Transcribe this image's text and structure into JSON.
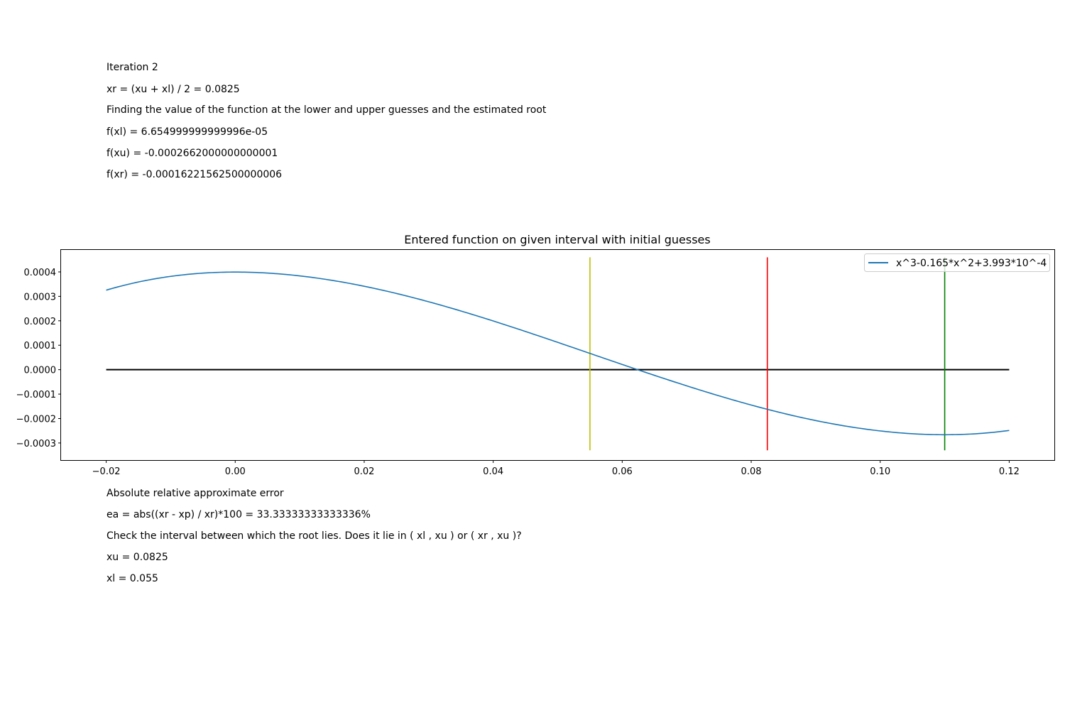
{
  "header": {
    "iteration": "Iteration 2",
    "xr_formula": "xr = (xu + xl) / 2 = 0.0825",
    "finding_text": "Finding the value of the function at the lower and upper guesses and the estimated root",
    "fxl": "f(xl) = 6.654999999999996e-05",
    "fxu": "f(xu) = -0.0002662000000000001",
    "fxr": "f(xr) = -0.00016221562500000006"
  },
  "footer": {
    "error_heading": "Absolute relative approximate error",
    "ea_formula": "ea = abs((xr - xp) / xr)*100 = 33.33333333333336%",
    "check_text": "Check the interval between which the root lies. Does it lie in ( xl , xu ) or ( xr , xu )?",
    "xu_value": "xu = 0.0825",
    "xl_value": "xl = 0.055"
  },
  "chart_data": {
    "type": "line",
    "title": "Entered function on given interval with initial guesses",
    "xlabel": "",
    "ylabel": "",
    "xlim": [
      -0.027,
      0.127
    ],
    "ylim": [
      -0.00037,
      0.00049
    ],
    "x_ticks": [
      "−0.02",
      "0.00",
      "0.02",
      "0.04",
      "0.06",
      "0.08",
      "0.10",
      "0.12"
    ],
    "x_tick_values": [
      -0.02,
      0.0,
      0.02,
      0.04,
      0.06,
      0.08,
      0.1,
      0.12
    ],
    "y_ticks": [
      "0.0004",
      "0.0003",
      "0.0002",
      "0.0001",
      "0.0000",
      "−0.0001",
      "−0.0002",
      "−0.0003"
    ],
    "y_tick_values": [
      0.0004,
      0.0003,
      0.0002,
      0.0001,
      0.0,
      -0.0001,
      -0.0002,
      -0.0003
    ],
    "grid": false,
    "legend_position": "top-right",
    "series": [
      {
        "name": "x^3-0.165*x^2+3.993*10^-4",
        "function": "x^3-0.165*x^2+3.993*10^-4",
        "x_range": [
          -0.02,
          0.12
        ],
        "color": "#1f77b4"
      }
    ],
    "baseline": {
      "y": 0,
      "x_range": [
        -0.02,
        0.12
      ],
      "color": "#000000"
    },
    "vertical_lines": [
      {
        "x": 0.055,
        "y_range": [
          -0.00033,
          0.00046
        ],
        "color": "#bfbf00"
      },
      {
        "x": 0.0825,
        "y_range": [
          -0.00033,
          0.00046
        ],
        "color": "#ff0000"
      },
      {
        "x": 0.11,
        "y_range": [
          -0.00033,
          0.00046
        ],
        "color": "#008000"
      }
    ]
  }
}
